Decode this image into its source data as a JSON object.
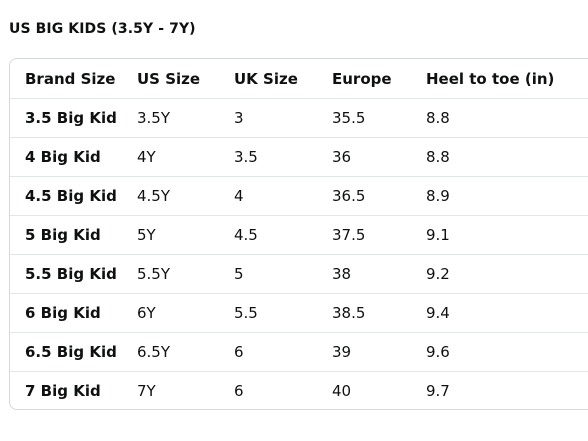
{
  "title": "US BIG KIDS (3.5Y - 7Y)",
  "table": {
    "headers": [
      "Brand Size",
      "US Size",
      "UK Size",
      "Europe",
      "Heel to toe (in)"
    ],
    "rows": [
      [
        "3.5 Big Kid",
        "3.5Y",
        "3",
        "35.5",
        "8.8"
      ],
      [
        "4 Big Kid",
        "4Y",
        "3.5",
        "36",
        "8.8"
      ],
      [
        "4.5 Big Kid",
        "4.5Y",
        "4",
        "36.5",
        "8.9"
      ],
      [
        "5 Big Kid",
        "5Y",
        "4.5",
        "37.5",
        "9.1"
      ],
      [
        "5.5 Big Kid",
        "5.5Y",
        "5",
        "38",
        "9.2"
      ],
      [
        "6 Big Kid",
        "6Y",
        "5.5",
        "38.5",
        "9.4"
      ],
      [
        "6.5 Big Kid",
        "6.5Y",
        "6",
        "39",
        "9.6"
      ],
      [
        "7 Big Kid",
        "7Y",
        "6",
        "40",
        "9.7"
      ]
    ]
  }
}
